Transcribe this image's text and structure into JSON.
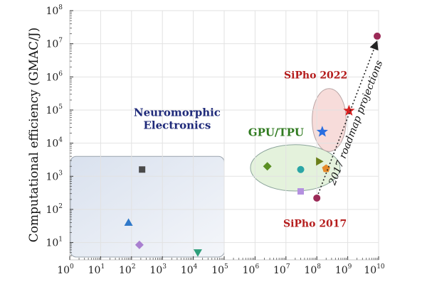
{
  "chart_data": {
    "type": "scatter",
    "title": "",
    "xlabel": "",
    "ylabel": "Computational efficiency (GMAC/J)",
    "x_scale": "log",
    "y_scale": "log",
    "xlim": [
      1,
      10000000000
    ],
    "ylim": [
      3,
      100000000
    ],
    "grid": true,
    "x_ticks": [
      {
        "base": "10",
        "exp": "0"
      },
      {
        "base": "10",
        "exp": "1"
      },
      {
        "base": "10",
        "exp": "2"
      },
      {
        "base": "10",
        "exp": "3"
      },
      {
        "base": "10",
        "exp": "4"
      },
      {
        "base": "10",
        "exp": "5"
      },
      {
        "base": "10",
        "exp": "6"
      },
      {
        "base": "10",
        "exp": "7"
      },
      {
        "base": "10",
        "exp": "8"
      },
      {
        "base": "10",
        "exp": "9"
      },
      {
        "base": "10",
        "exp": "10"
      }
    ],
    "y_ticks": [
      {
        "base": "10",
        "exp": "1"
      },
      {
        "base": "10",
        "exp": "2"
      },
      {
        "base": "10",
        "exp": "3"
      },
      {
        "base": "10",
        "exp": "4"
      },
      {
        "base": "10",
        "exp": "5"
      },
      {
        "base": "10",
        "exp": "6"
      },
      {
        "base": "10",
        "exp": "7"
      },
      {
        "base": "10",
        "exp": "8"
      }
    ],
    "groups": [
      {
        "name": "Neuromorphic Electronics",
        "label_lines": [
          "Neuromorphic",
          "Electronics"
        ],
        "label_color": "#1f2a7a",
        "region": {
          "shape": "rect",
          "x": [
            1,
            100000
          ],
          "y": [
            3,
            4000
          ],
          "fill": "#e6ecf5",
          "stroke": "#9aa3ad"
        },
        "points": [
          {
            "x": 220,
            "y": 1600,
            "marker": "square",
            "color": "#4a4a4a"
          },
          {
            "x": 80,
            "y": 40,
            "marker": "triangle-up",
            "color": "#2f78c9"
          },
          {
            "x": 180,
            "y": 8.5,
            "marker": "diamond",
            "color": "#a97fd0"
          },
          {
            "x": 14000,
            "y": 5,
            "marker": "triangle-down",
            "color": "#2e9e7a"
          }
        ]
      },
      {
        "name": "GPU/TPU",
        "label_lines": [
          "GPU/TPU"
        ],
        "label_color": "#2f7a1f",
        "region": {
          "shape": "ellipse",
          "cx": 20000000,
          "cy": 1800,
          "rx_decades": 1.45,
          "ry_decades": 0.7,
          "fill": "#dff0d6",
          "stroke": "#8aa39a"
        },
        "points": [
          {
            "x": 2500000,
            "y": 2000,
            "marker": "diamond",
            "color": "#5a8f23"
          },
          {
            "x": 30000000,
            "y": 1600,
            "marker": "circle",
            "color": "#2ba6a6"
          },
          {
            "x": 120000000,
            "y": 2800,
            "marker": "triangle-right",
            "color": "#6b7f1a"
          },
          {
            "x": 200000000,
            "y": 1700,
            "marker": "pentagon",
            "color": "#e58a2a"
          },
          {
            "x": 30000000,
            "y": 350,
            "marker": "square",
            "color": "#b490e0"
          }
        ]
      },
      {
        "name": "SiPho 2022",
        "label_lines": [
          "SiPho 2022"
        ],
        "label_color": "#b51d1d",
        "region": {
          "shape": "ellipse",
          "cx": 250000000,
          "cy": 50000,
          "rx_decades": 0.55,
          "ry_decades": 0.95,
          "fill": "#f6d6d3",
          "stroke": "#b7a3a3"
        },
        "points": [
          {
            "x": 150000000,
            "y": 22000,
            "marker": "star",
            "color": "#2a6ee0"
          },
          {
            "x": 1100000000,
            "y": 95000,
            "marker": "star",
            "color": "#d62020"
          }
        ]
      },
      {
        "name": "SiPho 2017",
        "label_lines": [
          "SiPho 2017"
        ],
        "label_color": "#b51d1d",
        "points": [
          {
            "x": 100000000,
            "y": 220,
            "marker": "circle",
            "color": "#9b2a57"
          },
          {
            "x": 9000000000,
            "y": 17000000,
            "marker": "circle",
            "color": "#9b2a57"
          }
        ]
      }
    ],
    "annotations": [
      {
        "text": "2017 roadmap projections",
        "from": [
          100000000,
          220
        ],
        "to": [
          9000000000,
          17000000
        ],
        "style": "dotted-arrow"
      }
    ]
  }
}
